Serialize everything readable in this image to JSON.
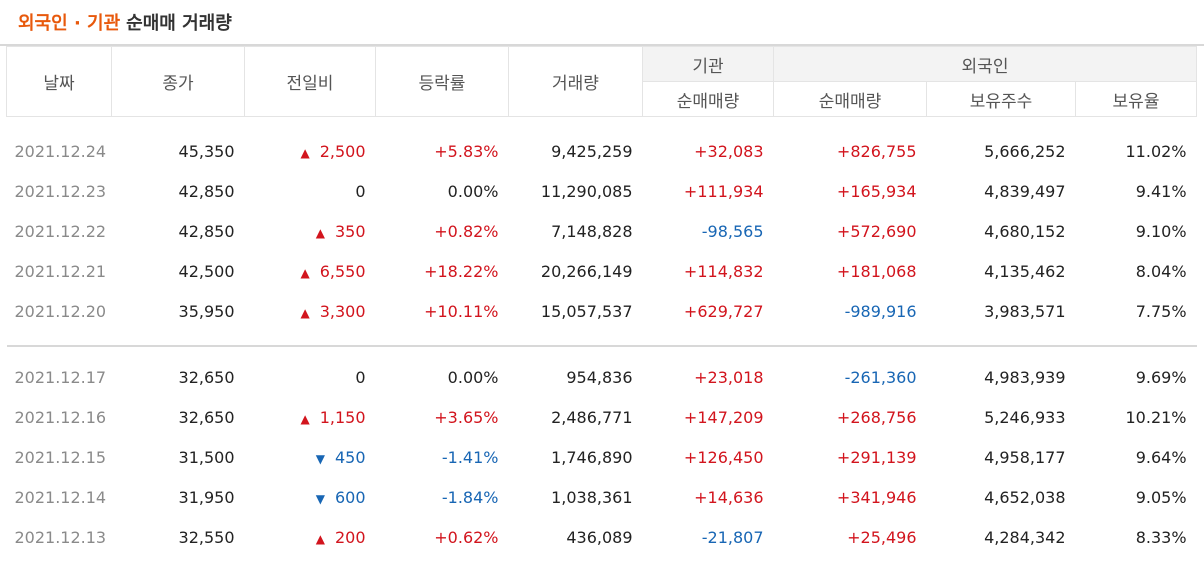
{
  "title": {
    "accent": "외국인 · 기관",
    "rest": "순매매 거래량"
  },
  "headers": {
    "date": "날짜",
    "close": "종가",
    "change": "전일비",
    "rate": "등락률",
    "volume": "거래량",
    "inst_group": "기관",
    "foreign_group": "외국인",
    "inst_net": "순매매량",
    "foreign_net": "순매매량",
    "holdings": "보유주수",
    "ratio": "보유율"
  },
  "colors": {
    "up": "#d2141d",
    "down": "#1866b4",
    "accent": "#e8590c"
  },
  "rows_group1": [
    {
      "date": "2021.12.24",
      "close": "45,350",
      "dir": "up",
      "arrow": "▲",
      "change": "2,500",
      "rate": "+5.83%",
      "volume": "9,425,259",
      "inst": "+32,083",
      "foreign": "+826,755",
      "holdings": "5,666,252",
      "ratio": "11.02%"
    },
    {
      "date": "2021.12.23",
      "close": "42,850",
      "dir": "flat",
      "arrow": "",
      "change": "0",
      "rate": "0.00%",
      "volume": "11,290,085",
      "inst": "+111,934",
      "foreign": "+165,934",
      "holdings": "4,839,497",
      "ratio": "9.41%"
    },
    {
      "date": "2021.12.22",
      "close": "42,850",
      "dir": "up",
      "arrow": "▲",
      "change": "350",
      "rate": "+0.82%",
      "volume": "7,148,828",
      "inst": "-98,565",
      "foreign": "+572,690",
      "holdings": "4,680,152",
      "ratio": "9.10%"
    },
    {
      "date": "2021.12.21",
      "close": "42,500",
      "dir": "up",
      "arrow": "▲",
      "change": "6,550",
      "rate": "+18.22%",
      "volume": "20,266,149",
      "inst": "+114,832",
      "foreign": "+181,068",
      "holdings": "4,135,462",
      "ratio": "8.04%"
    },
    {
      "date": "2021.12.20",
      "close": "35,950",
      "dir": "up",
      "arrow": "▲",
      "change": "3,300",
      "rate": "+10.11%",
      "volume": "15,057,537",
      "inst": "+629,727",
      "foreign": "-989,916",
      "holdings": "3,983,571",
      "ratio": "7.75%"
    }
  ],
  "rows_group2": [
    {
      "date": "2021.12.17",
      "close": "32,650",
      "dir": "flat",
      "arrow": "",
      "change": "0",
      "rate": "0.00%",
      "volume": "954,836",
      "inst": "+23,018",
      "foreign": "-261,360",
      "holdings": "4,983,939",
      "ratio": "9.69%"
    },
    {
      "date": "2021.12.16",
      "close": "32,650",
      "dir": "up",
      "arrow": "▲",
      "change": "1,150",
      "rate": "+3.65%",
      "volume": "2,486,771",
      "inst": "+147,209",
      "foreign": "+268,756",
      "holdings": "5,246,933",
      "ratio": "10.21%"
    },
    {
      "date": "2021.12.15",
      "close": "31,500",
      "dir": "down",
      "arrow": "▼",
      "change": "450",
      "rate": "-1.41%",
      "volume": "1,746,890",
      "inst": "+126,450",
      "foreign": "+291,139",
      "holdings": "4,958,177",
      "ratio": "9.64%"
    },
    {
      "date": "2021.12.14",
      "close": "31,950",
      "dir": "down",
      "arrow": "▼",
      "change": "600",
      "rate": "-1.84%",
      "volume": "1,038,361",
      "inst": "+14,636",
      "foreign": "+341,946",
      "holdings": "4,652,038",
      "ratio": "9.05%"
    },
    {
      "date": "2021.12.13",
      "close": "32,550",
      "dir": "up",
      "arrow": "▲",
      "change": "200",
      "rate": "+0.62%",
      "volume": "436,089",
      "inst": "-21,807",
      "foreign": "+25,496",
      "holdings": "4,284,342",
      "ratio": "8.33%"
    }
  ]
}
